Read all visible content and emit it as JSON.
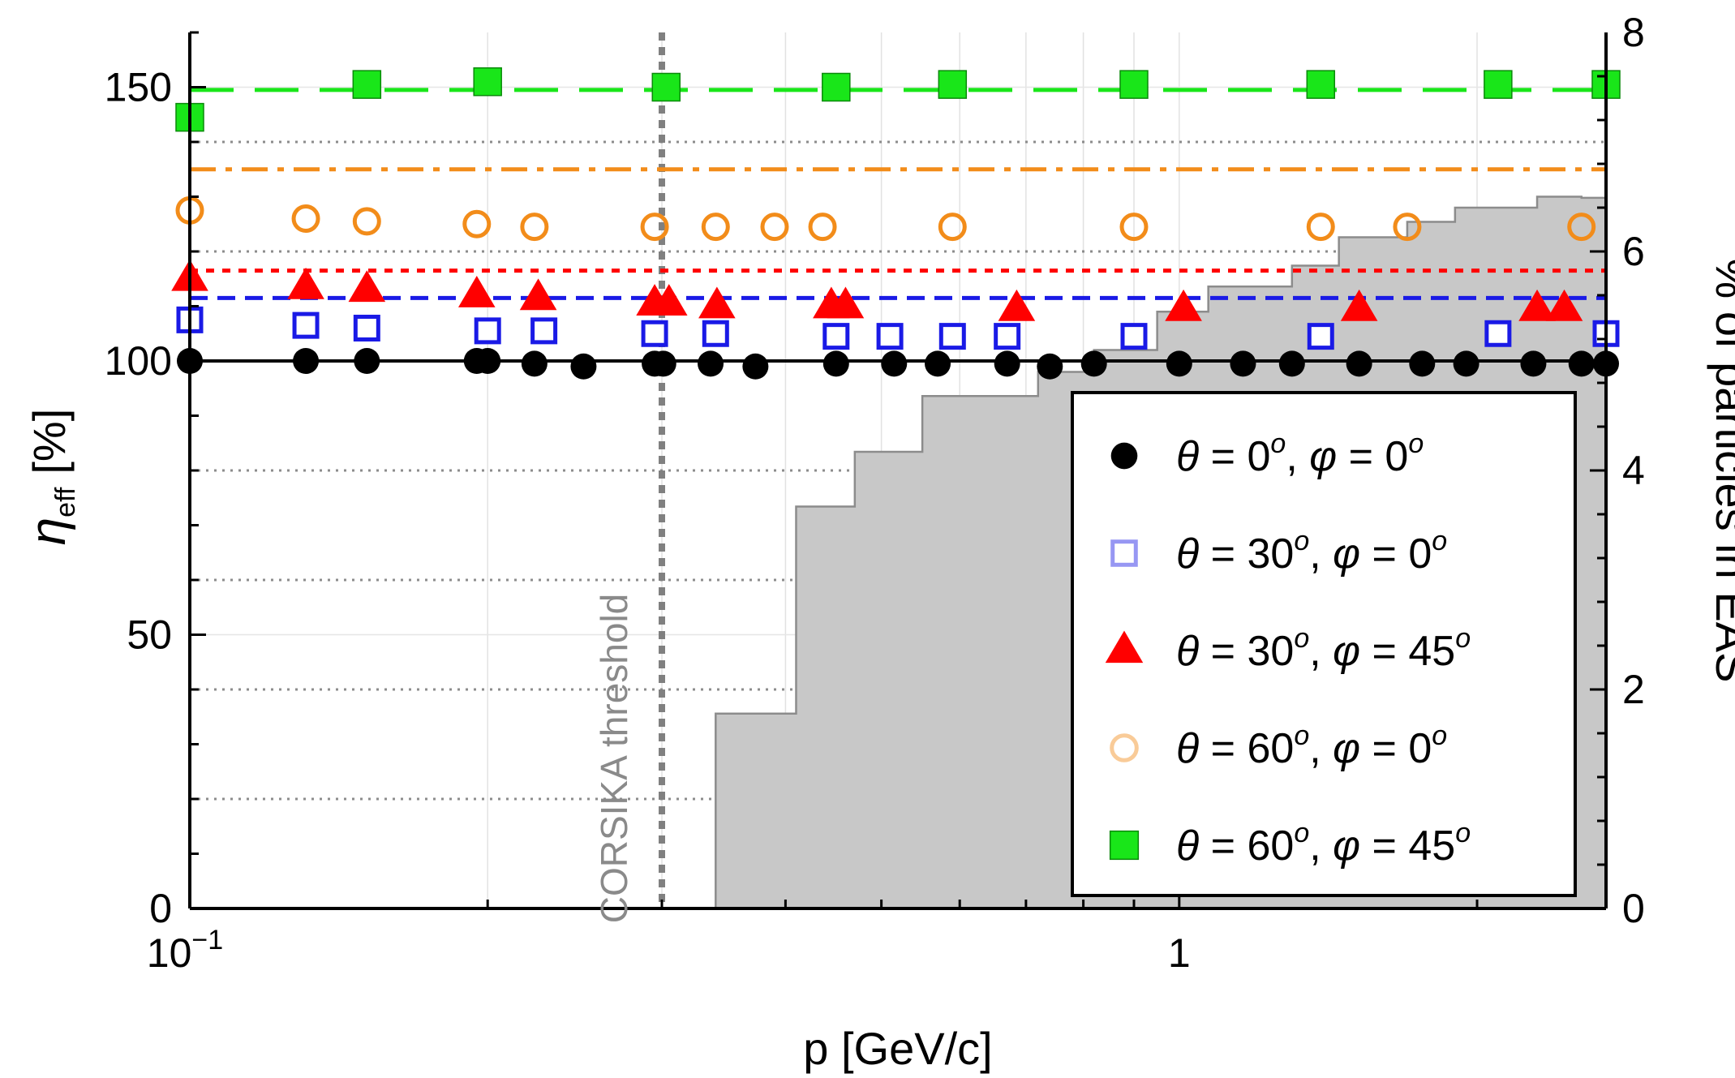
{
  "chart_data": {
    "type": "scatter",
    "x_scale": "log",
    "xlim": [
      0.1,
      2.7
    ],
    "ylim_left": [
      0,
      160
    ],
    "ylim_right": [
      0,
      8
    ],
    "xlabel": "p [GeV/c]",
    "ylabel_left": "η",
    "ylabel_left_sub": "eff",
    "ylabel_left_unit": "[%]",
    "ylabel_right": "% of particles in EAS",
    "x_tick_labels": [
      {
        "value": 0.1,
        "base": "10",
        "exp": "−1"
      },
      {
        "value": 1,
        "base": "1",
        "exp": ""
      }
    ],
    "y_left_ticks": [
      0,
      50,
      100,
      150
    ],
    "y_right_ticks": [
      0,
      2,
      4,
      6,
      8
    ],
    "threshold": {
      "x": 0.3,
      "label": "CORSIKA threshold",
      "color": "#808080"
    },
    "histogram": {
      "name": "% of particles in EAS",
      "color": "#c8c8c8",
      "edges": [
        0.34,
        0.41,
        0.47,
        0.55,
        0.72,
        0.82,
        0.95,
        1.07,
        1.3,
        1.45,
        1.7,
        1.9,
        2.3,
        2.55,
        2.7
      ],
      "values": [
        1.78,
        3.67,
        4.17,
        4.68,
        4.9,
        5.1,
        5.45,
        5.68,
        5.87,
        6.13,
        6.27,
        6.4,
        6.5,
        6.49
      ]
    },
    "reference_lines": [
      {
        "series": "θ = 0°, φ = 0°",
        "y": 100,
        "style": "solid",
        "color": "#000000"
      },
      {
        "series": "θ = 30°, φ = 0°",
        "y": 111.5,
        "style": "dashed",
        "color": "#1a1ae6"
      },
      {
        "series": "θ = 30°, φ = 45°",
        "y": 116.5,
        "style": "dotted",
        "color": "#ff0000"
      },
      {
        "series": "θ = 60°, φ = 0°",
        "y": 135,
        "style": "dashdot",
        "color": "#f28c1a"
      },
      {
        "series": "θ = 60°, φ = 45°",
        "y": 149.5,
        "style": "longdash",
        "color": "#19e619"
      }
    ],
    "series": [
      {
        "name": "θ = 0°, φ = 0°",
        "theta": "0",
        "phi": "0",
        "marker": "circle-filled",
        "color": "#000000",
        "x": [
          0.1,
          0.131,
          0.151,
          0.195,
          0.2,
          0.223,
          0.25,
          0.295,
          0.301,
          0.336,
          0.373,
          0.45,
          0.515,
          0.57,
          0.67,
          0.74,
          0.82,
          1.0,
          1.16,
          1.3,
          1.52,
          1.76,
          1.95,
          2.28,
          2.55,
          2.7
        ],
        "y": [
          100,
          100,
          100,
          100,
          100,
          99.5,
          99,
          99.5,
          99.5,
          99.5,
          99,
          99.5,
          99.5,
          99.5,
          99.5,
          99,
          99.5,
          99.5,
          99.5,
          99.5,
          99.5,
          99.5,
          99.5,
          99.5,
          99.5,
          99.5
        ]
      },
      {
        "name": "θ = 30°, φ = 0°",
        "theta": "30",
        "phi": "0",
        "marker": "square-open",
        "color": "#1a1ae6",
        "x": [
          0.1,
          0.131,
          0.151,
          0.2,
          0.228,
          0.295,
          0.34,
          0.45,
          0.51,
          0.59,
          0.67,
          0.9,
          1.39,
          2.1,
          2.7
        ],
        "y": [
          107.5,
          106.5,
          106,
          105.5,
          105.5,
          105,
          105,
          104.5,
          104.5,
          104.5,
          104.5,
          104.5,
          104.5,
          105,
          105
        ]
      },
      {
        "name": "θ = 30°, φ = 45°",
        "theta": "30",
        "phi": "45",
        "marker": "triangle-filled",
        "color": "#ff0000",
        "x": [
          0.1,
          0.131,
          0.151,
          0.195,
          0.225,
          0.295,
          0.305,
          0.341,
          0.445,
          0.46,
          0.685,
          1.01,
          1.52,
          2.3,
          2.45
        ],
        "y": [
          115,
          113.5,
          113,
          112,
          111.5,
          110.5,
          110.5,
          110,
          110,
          110,
          109.5,
          109.5,
          109.5,
          109.5,
          109.5
        ]
      },
      {
        "name": "θ = 60°, φ = 0°",
        "theta": "60",
        "phi": "0",
        "marker": "circle-open",
        "color": "#f28c1a",
        "x": [
          0.1,
          0.131,
          0.151,
          0.195,
          0.223,
          0.295,
          0.34,
          0.39,
          0.436,
          0.59,
          0.9,
          1.39,
          1.7,
          2.55
        ],
        "y": [
          127.5,
          126,
          125.5,
          125,
          124.5,
          124.5,
          124.5,
          124.5,
          124.5,
          124.5,
          124.5,
          124.5,
          124.5,
          124.5
        ]
      },
      {
        "name": "θ = 60°, φ = 45°",
        "theta": "60",
        "phi": "45",
        "marker": "square-filled",
        "color": "#19e619",
        "x": [
          0.1,
          0.151,
          0.2,
          0.303,
          0.45,
          0.59,
          0.9,
          1.39,
          2.1,
          2.7
        ],
        "y": [
          144.5,
          150.5,
          151,
          150,
          150,
          150.5,
          150.5,
          150.5,
          150.5,
          150.5
        ]
      }
    ]
  }
}
